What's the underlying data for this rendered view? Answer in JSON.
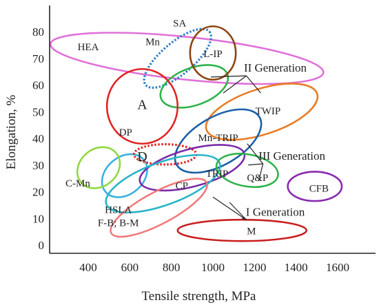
{
  "chart_data": {
    "type": "scatter",
    "title": "",
    "xlabel": "Tensile strength, MPa",
    "ylabel": "Elongation, %",
    "xlim": [
      200,
      1700
    ],
    "ylim": [
      0,
      80
    ],
    "xticks": [
      400,
      600,
      800,
      1000,
      1200,
      1400,
      1600
    ],
    "yticks": [
      0,
      10,
      20,
      30,
      40,
      50,
      60,
      70,
      80
    ],
    "grid": false,
    "legend": "none",
    "regions": [
      {
        "label": "HEA",
        "cx": 875,
        "cy": 70,
        "rx_mpa": 660,
        "ry_pct": 8,
        "angle": -6,
        "color": "#e070d8",
        "dashed": false,
        "label_x": 400,
        "label_y": 73
      },
      {
        "label": "Mn",
        "cx": 830,
        "cy": 70,
        "rx_mpa": 200,
        "ry_pct": 6,
        "angle": 40,
        "color": "#2a7fc8",
        "dashed": true,
        "label_x": 710,
        "label_y": 75
      },
      {
        "label": "SA",
        "cx": 910,
        "cy": 59.5,
        "rx_mpa": 170,
        "ry_pct": 7,
        "angle": 20,
        "color": "#2db34a",
        "dashed": false,
        "label_x": 840,
        "label_y": 82
      },
      {
        "label": "L-IP",
        "cx": 1000,
        "cy": 72,
        "rx_mpa": 110,
        "ry_pct": 10,
        "angle": 0,
        "color": "#8b4513",
        "dashed": false,
        "label_x": 1000,
        "label_y": 70.5
      },
      {
        "label": "TWIP",
        "cx": 1235,
        "cy": 50,
        "rx_mpa": 280,
        "ry_pct": 8.5,
        "angle": 18,
        "color": "#e87b22",
        "dashed": false,
        "label_x": 1265,
        "label_y": 49
      },
      {
        "label": "A",
        "cx": 660,
        "cy": 52,
        "rx_mpa": 170,
        "ry_pct": 14,
        "angle": 0,
        "color": "#e02424",
        "dashed": false,
        "label_x": 660,
        "label_y": 51
      },
      {
        "label": "Mn-TRIP",
        "cx": 1025,
        "cy": 39,
        "rx_mpa": 230,
        "ry_pct": 9,
        "angle": 30,
        "color": "#1a5fa8",
        "dashed": false,
        "label_x": 1025,
        "label_y": 39
      },
      {
        "label": "DP",
        "cx": 575,
        "cy": 26,
        "rx_mpa": 120,
        "ry_pct": 7,
        "angle": 40,
        "color": "#3ab0e0",
        "dashed": false,
        "label_x": 580,
        "label_y": 41
      },
      {
        "label": "D",
        "cx": 770,
        "cy": 34,
        "rx_mpa": 150,
        "ry_pct": 3.8,
        "angle": 0,
        "color": "#e02424",
        "dashed": true,
        "label_x": 660,
        "label_y": 31.5
      },
      {
        "label": "TRIP",
        "cx": 900,
        "cy": 29,
        "rx_mpa": 260,
        "ry_pct": 7,
        "angle": 15,
        "color": "#7a2aa8",
        "dashed": false,
        "label_x": 1020,
        "label_y": 25.5
      },
      {
        "label": "CP",
        "cx": 760,
        "cy": 23,
        "rx_mpa": 290,
        "ry_pct": 8,
        "angle": 20,
        "color": "#27b5c8",
        "dashed": false,
        "label_x": 850,
        "label_y": 21
      },
      {
        "label": "C-Mn",
        "cx": 450,
        "cy": 29,
        "rx_mpa": 110,
        "ry_pct": 7,
        "angle": 40,
        "color": "#90d840",
        "dashed": false,
        "label_x": 350,
        "label_y": 22
      },
      {
        "label": "HSLA\nF-B; B-M",
        "cx": 740,
        "cy": 14,
        "rx_mpa": 260,
        "ry_pct": 6,
        "angle": 28,
        "color": "#f07a7a",
        "dashed": false,
        "label_x": 545,
        "label_y": 12
      },
      {
        "label": "Q&P",
        "cx": 1165,
        "cy": 28,
        "rx_mpa": 150,
        "ry_pct": 6,
        "angle": -10,
        "color": "#2db34a",
        "dashed": false,
        "label_x": 1215,
        "label_y": 24
      },
      {
        "label": "CFB",
        "cx": 1490,
        "cy": 22,
        "rx_mpa": 130,
        "ry_pct": 5.5,
        "angle": 0,
        "color": "#8a2ab0",
        "dashed": false,
        "label_x": 1510,
        "label_y": 20
      },
      {
        "label": "M",
        "cx": 1140,
        "cy": 5.5,
        "rx_mpa": 310,
        "ry_pct": 4,
        "angle": 0,
        "color": "#c81e1e",
        "dashed": false,
        "label_x": 1185,
        "label_y": 4
      }
    ],
    "annotations": [
      {
        "text": "II Generation",
        "x": 1300,
        "y": 65,
        "pointers": [
          [
            990,
            63
          ],
          [
            1050,
            57
          ],
          [
            1230,
            57
          ]
        ]
      },
      {
        "text": "III Generation",
        "x": 1380,
        "y": 32,
        "pointers": [
          [
            1165,
            38
          ],
          [
            1170,
            30
          ],
          [
            1220,
            24
          ]
        ]
      },
      {
        "text": "I Generation",
        "x": 1300,
        "y": 11,
        "pointers": [
          [
            1000,
            18
          ],
          [
            1080,
            16
          ],
          [
            1140,
            10
          ]
        ]
      }
    ]
  }
}
